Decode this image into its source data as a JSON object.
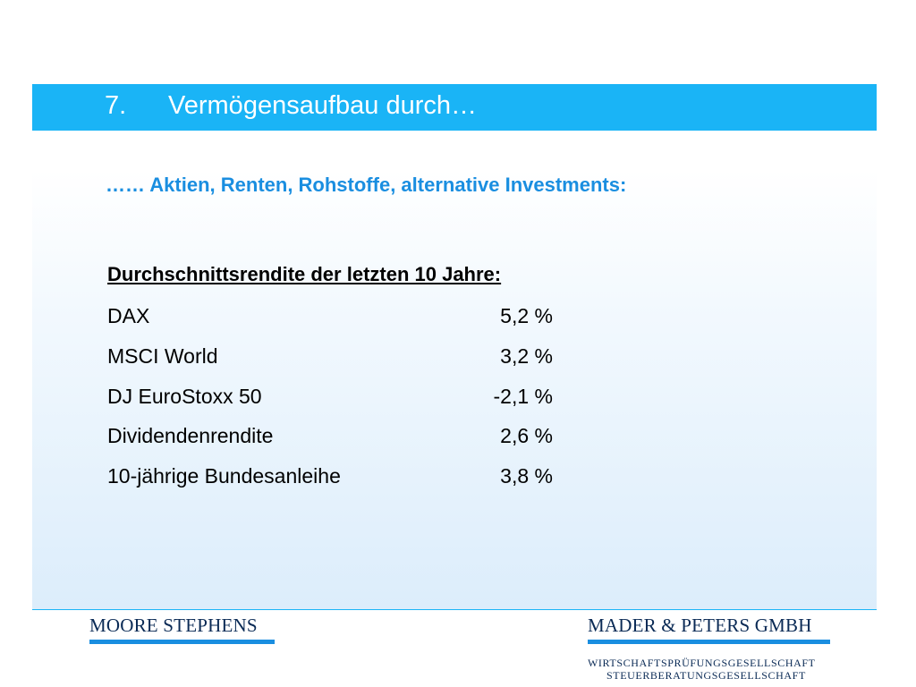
{
  "header": {
    "number": "7.",
    "title": "Vermögensaufbau durch…"
  },
  "subtitle": "…… Aktien, Renten, Rohstoffe, alternative Investments:",
  "section": {
    "heading": "Durchschnittsrendite der letzten 10 Jahre:",
    "rows": [
      {
        "label": "DAX",
        "value": "5,2 %"
      },
      {
        "label": "MSCI World",
        "value": "3,2 %"
      },
      {
        "label": "DJ EuroStoxx 50",
        "value": "-2,1 %"
      },
      {
        "label": "Dividendenrendite",
        "value": "2,6 %"
      },
      {
        "label": "10-jährige Bundesanleihe",
        "value": "3,8 %"
      }
    ]
  },
  "footer": {
    "left_logo": "MOORE STEPHENS",
    "right_logo": "MADER & PETERS GMBH",
    "right_line1": "WIRTSCHAFTSPRÜFUNGSGESELLSCHAFT",
    "right_line2": "STEUERBERATUNGSGESELLSCHAFT"
  },
  "colors": {
    "accent": "#1ab4f6",
    "subtitle": "#1a8ee0",
    "logo_text": "#0a2a55"
  }
}
